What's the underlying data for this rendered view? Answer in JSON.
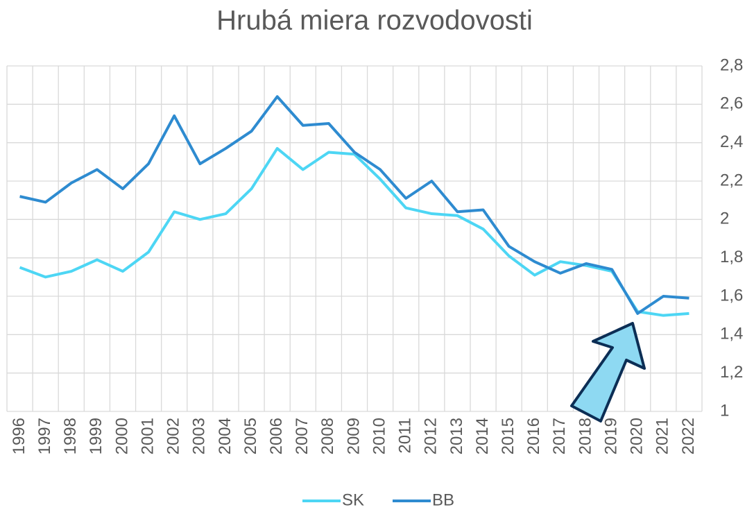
{
  "chart_data": {
    "type": "line",
    "title": "Hrubá miera rozvodovosti",
    "categories": [
      "1996",
      "1997",
      "1998",
      "1999",
      "2000",
      "2001",
      "2002",
      "2003",
      "2004",
      "2005",
      "2006",
      "2007",
      "2008",
      "2009",
      "2010",
      "2011",
      "2012",
      "2013",
      "2014",
      "2015",
      "2016",
      "2017",
      "2018",
      "2019",
      "2020",
      "2021",
      "2022"
    ],
    "series": [
      {
        "name": "SK",
        "color": "#4dd6f4",
        "values": [
          1.75,
          1.7,
          1.73,
          1.79,
          1.73,
          1.83,
          2.04,
          2.0,
          2.03,
          2.16,
          2.37,
          2.26,
          2.35,
          2.34,
          2.21,
          2.06,
          2.03,
          2.02,
          1.95,
          1.81,
          1.71,
          1.78,
          1.76,
          1.73,
          1.52,
          1.5,
          1.51
        ]
      },
      {
        "name": "BB",
        "color": "#2e8bd0",
        "values": [
          2.12,
          2.09,
          2.19,
          2.26,
          2.16,
          2.29,
          2.54,
          2.29,
          2.37,
          2.46,
          2.64,
          2.49,
          2.5,
          2.35,
          2.26,
          2.11,
          2.2,
          2.04,
          2.05,
          1.86,
          1.78,
          1.72,
          1.77,
          1.74,
          1.51,
          1.6,
          1.59
        ]
      }
    ],
    "ylim": [
      1,
      2.8
    ],
    "yticks": [
      1,
      {
        "value": 1.2,
        "label": "1,2"
      },
      {
        "value": 1.4,
        "label": "1,4"
      },
      {
        "value": 1.6,
        "label": "1,6"
      },
      {
        "value": 1.8,
        "label": "1,8"
      },
      2,
      {
        "value": 2.2,
        "label": "2,2"
      },
      {
        "value": 2.4,
        "label": "2,4"
      },
      {
        "value": 2.6,
        "label": "2,6"
      },
      {
        "value": 2.8,
        "label": "2,8"
      }
    ],
    "grid": true,
    "legend": "bottom"
  }
}
